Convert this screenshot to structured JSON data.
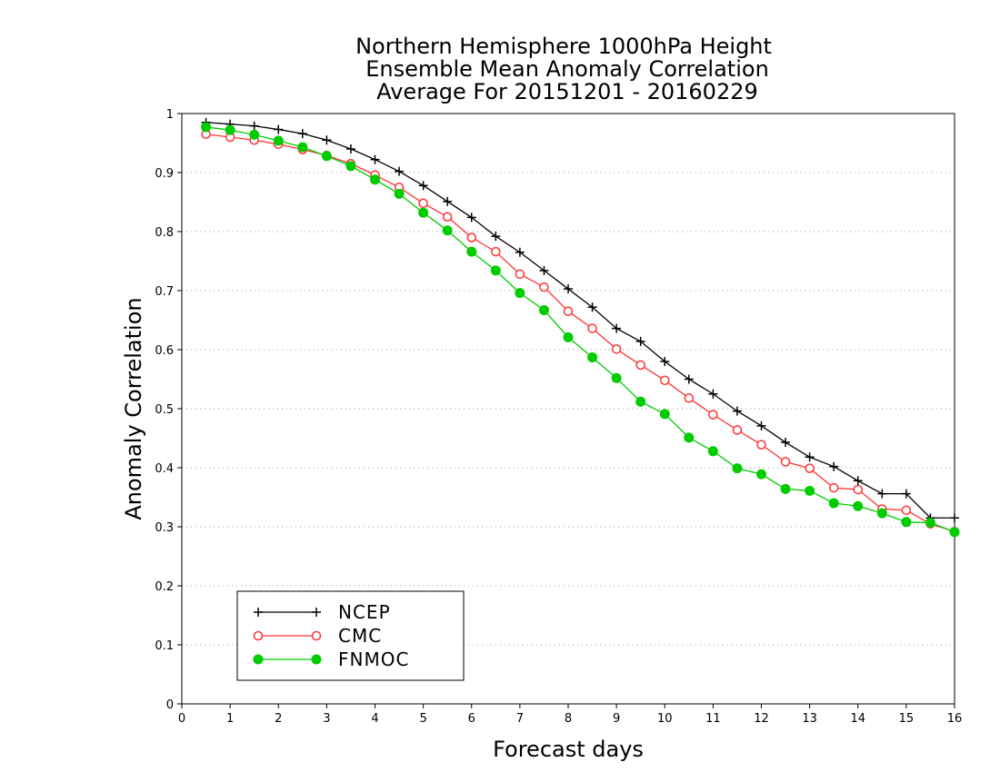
{
  "chart_data": {
    "type": "line",
    "title": [
      "Northern Hemisphere 1000hPa Height",
      "Ensemble Mean Anomaly Correlation",
      "Average For 20151201 - 20160229"
    ],
    "xlabel": "Forecast days",
    "ylabel": "Anomaly Correlation",
    "xlim": [
      0,
      16
    ],
    "ylim": [
      0,
      1
    ],
    "x_ticks": [
      "0",
      "1",
      "2",
      "3",
      "4",
      "5",
      "6",
      "7",
      "8",
      "9",
      "10",
      "11",
      "12",
      "13",
      "14",
      "15",
      "16"
    ],
    "y_ticks": [
      "0",
      "0.1",
      "0.2",
      "0.3",
      "0.4",
      "0.5",
      "0.6",
      "0.7",
      "0.8",
      "0.9",
      "1"
    ],
    "grid": "horizontal dotted",
    "legend_position": "bottom-left",
    "x": [
      0.5,
      1,
      1.5,
      2,
      2.5,
      3,
      3.5,
      4,
      4.5,
      5,
      5.5,
      6,
      6.5,
      7,
      7.5,
      8,
      8.5,
      9,
      9.5,
      10,
      10.5,
      11,
      11.5,
      12,
      12.5,
      13,
      13.5,
      14,
      14.5,
      15,
      15.5,
      16
    ],
    "series": [
      {
        "name": "NCEP",
        "color": "#000000",
        "marker": "plus",
        "values": [
          0.985,
          0.982,
          0.979,
          0.973,
          0.966,
          0.955,
          0.94,
          0.922,
          0.902,
          0.878,
          0.851,
          0.824,
          0.792,
          0.765,
          0.734,
          0.703,
          0.672,
          0.636,
          0.614,
          0.58,
          0.55,
          0.525,
          0.496,
          0.471,
          0.443,
          0.418,
          0.402,
          0.378,
          0.356,
          0.356,
          0.315,
          0.315
        ]
      },
      {
        "name": "CMC",
        "color": "#ff3333",
        "marker": "circle-open",
        "values": [
          0.965,
          0.96,
          0.955,
          0.948,
          0.939,
          0.929,
          0.915,
          0.896,
          0.875,
          0.848,
          0.825,
          0.79,
          0.766,
          0.728,
          0.706,
          0.665,
          0.636,
          0.601,
          0.574,
          0.548,
          0.518,
          0.49,
          0.464,
          0.439,
          0.41,
          0.399,
          0.366,
          0.363,
          0.33,
          0.328,
          0.305,
          0.292
        ]
      },
      {
        "name": "FNMOC",
        "color": "#00cc00",
        "marker": "circle-filled",
        "values": [
          0.977,
          0.972,
          0.964,
          0.954,
          0.943,
          0.928,
          0.911,
          0.888,
          0.864,
          0.832,
          0.802,
          0.766,
          0.734,
          0.696,
          0.667,
          0.621,
          0.587,
          0.552,
          0.512,
          0.491,
          0.451,
          0.428,
          0.399,
          0.389,
          0.364,
          0.361,
          0.34,
          0.335,
          0.323,
          0.308,
          0.307,
          0.291
        ]
      }
    ]
  }
}
